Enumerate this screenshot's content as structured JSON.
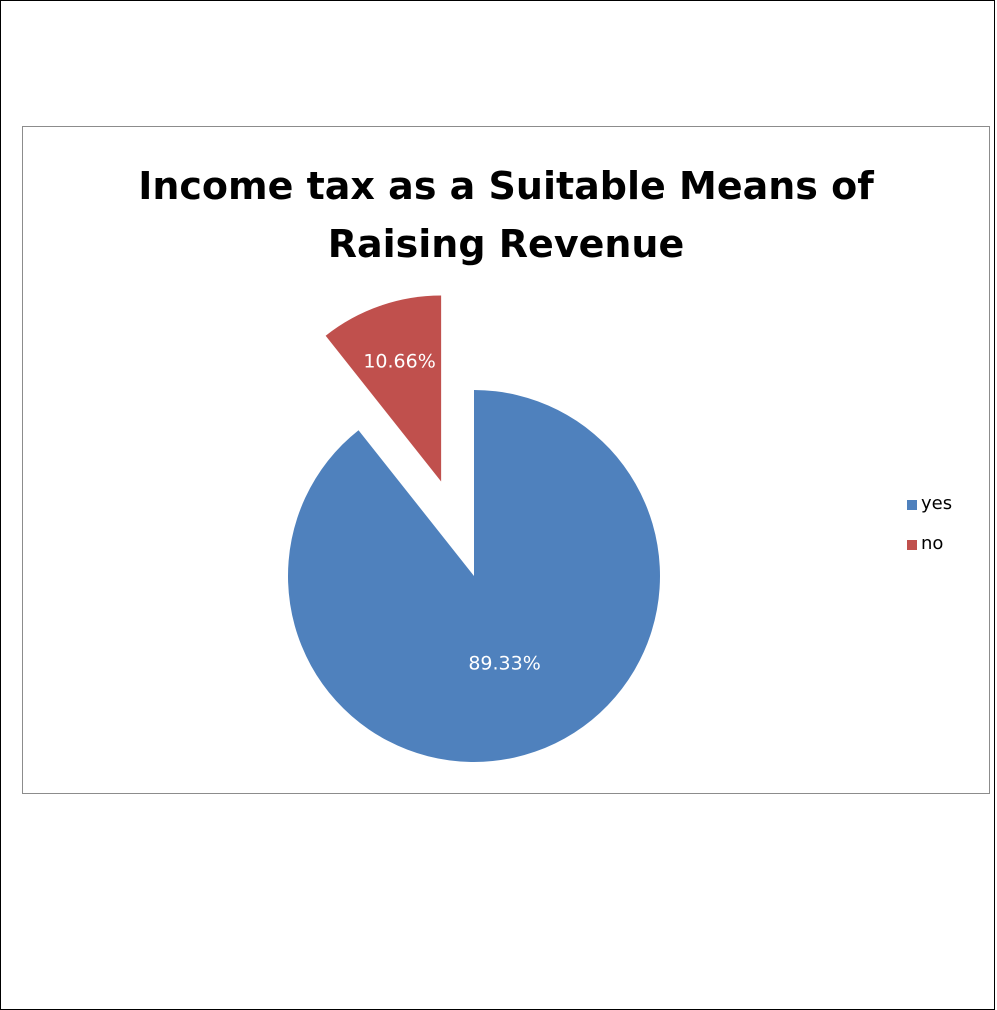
{
  "chart_data": {
    "type": "pie",
    "title_lines": [
      "Income tax as a Suitable Means of",
      "Raising Revenue"
    ],
    "slices": [
      {
        "label": "yes",
        "value": 89.33,
        "display": "89.33%",
        "color": "#4f81bd",
        "exploded": false
      },
      {
        "label": "no",
        "value": 10.66,
        "display": "10.66%",
        "color": "#c0504d",
        "exploded": true
      }
    ],
    "legend_position": "right"
  }
}
